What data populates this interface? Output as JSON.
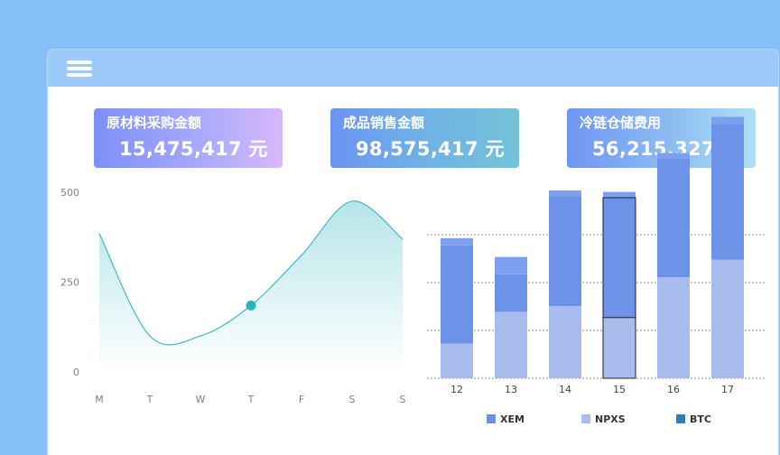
{
  "header": {
    "menu_icon": "hamburger-menu-icon"
  },
  "cards": [
    {
      "label": "原材料采购金额",
      "value": "15,475,417 元"
    },
    {
      "label": "成品销售金额",
      "value": "98,575,417 元"
    },
    {
      "label": "冷链仓储费用",
      "value": "56,215,327 元"
    }
  ],
  "colors": {
    "background": "#87bff9",
    "topbar": "#9ccbfb",
    "line": "#3fb8c8",
    "point": "#28b3bf",
    "xem": "#6c93e8",
    "npxs": "#a9bcee",
    "btc": "#2e7fc0"
  },
  "chart_data": [
    {
      "type": "area",
      "x": [
        "M",
        "T",
        "W",
        "T",
        "F",
        "S",
        "S"
      ],
      "values": [
        385,
        100,
        100,
        185,
        325,
        475,
        370
      ],
      "highlight": {
        "x": "T",
        "value": 185
      },
      "ylim": [
        0,
        500
      ],
      "yticks": [
        "0",
        "250",
        "500"
      ],
      "smooth": true,
      "grid": false
    },
    {
      "type": "bar",
      "stacked": true,
      "categories": [
        "12",
        "13",
        "14",
        "15",
        "16",
        "17"
      ],
      "series": [
        {
          "name": "XEM",
          "values": [
            340,
            130,
            380,
            415,
            410,
            470
          ]
        },
        {
          "name": "NPXS",
          "values": [
            120,
            230,
            250,
            210,
            350,
            410
          ]
        },
        {
          "name": "BTC",
          "values": [
            0,
            0,
            0,
            0,
            0,
            0
          ]
        }
      ],
      "caps": [
        50,
        120,
        40,
        40,
        40,
        50
      ],
      "highlight_category": "15",
      "legend_position": "bottom",
      "grid": "dotted-horizontal"
    }
  ]
}
